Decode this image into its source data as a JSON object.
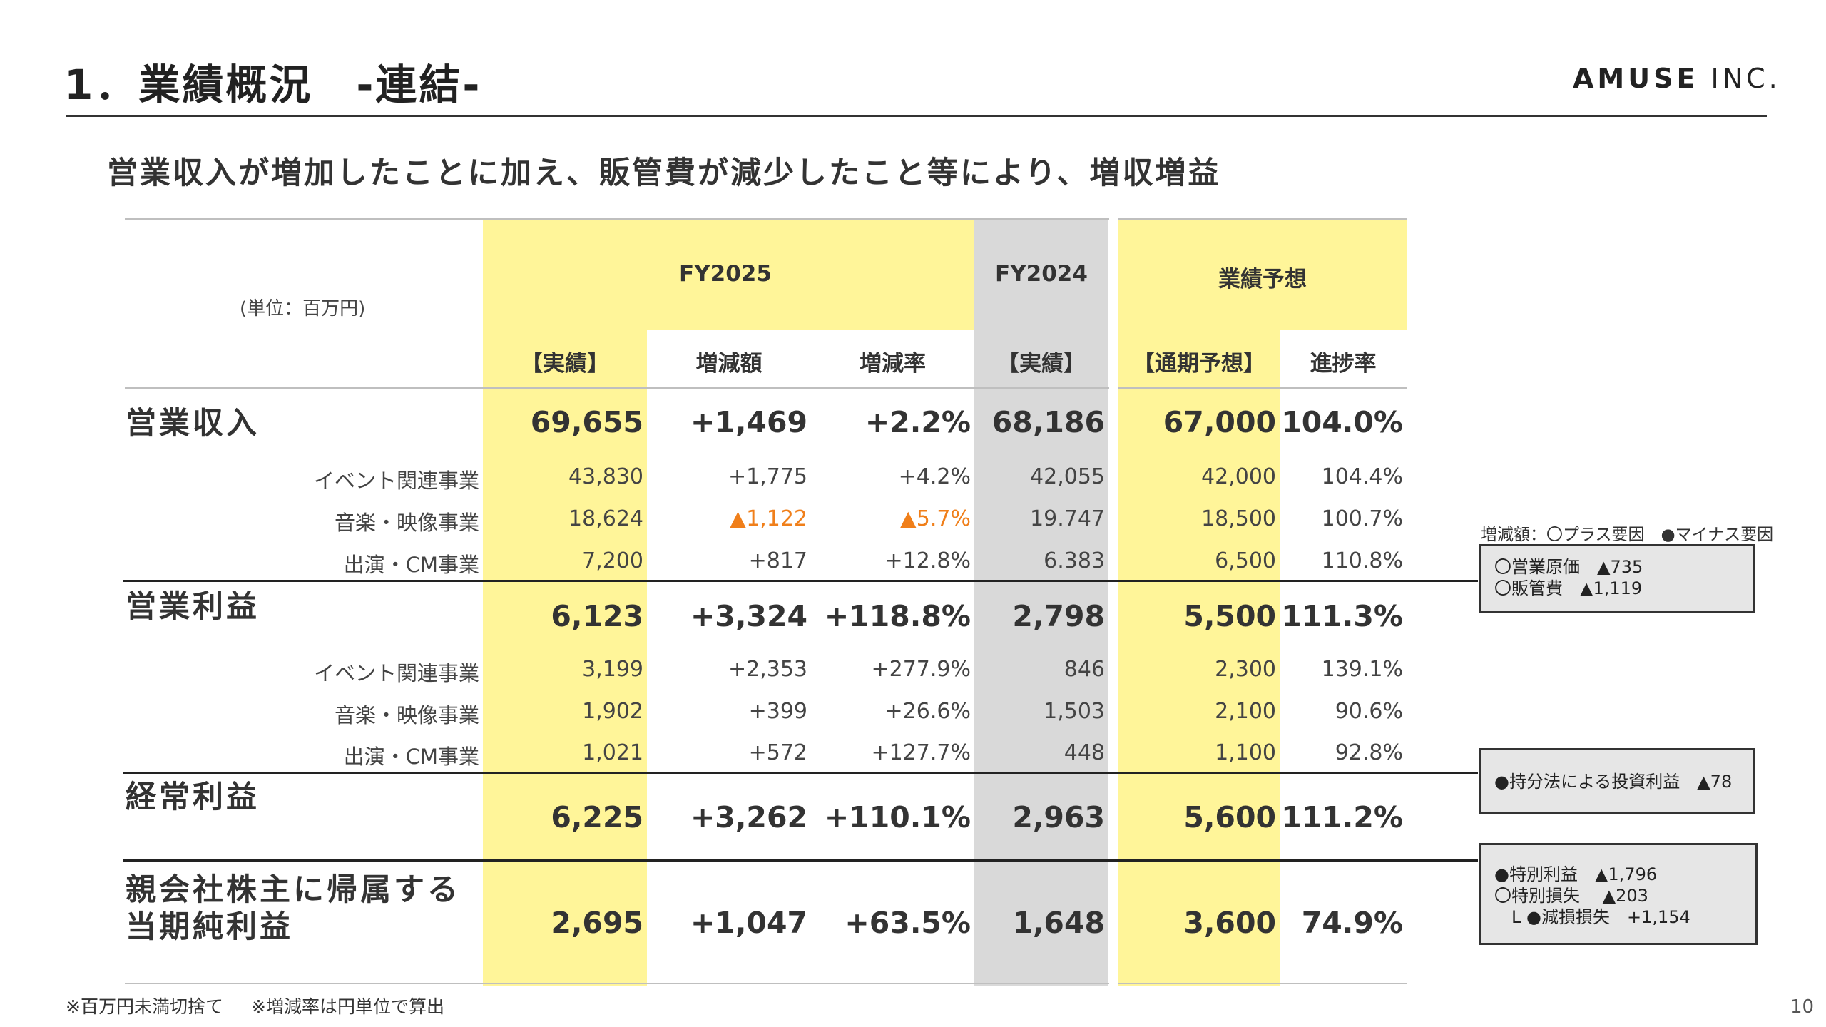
{
  "header": {
    "title": "1．業績概況　-連結-",
    "logo_main": "AMUSE",
    "logo_sub": "INC.",
    "subtitle": "営業収入が増加したことに加え、販管費が減少したこと等により、増収増益"
  },
  "table": {
    "unit": "(単位：百万円)",
    "group_headers": {
      "fy2025": "FY2025",
      "fy2024": "FY2024",
      "forecast": "業績予想"
    },
    "col_headers": [
      "【実績】",
      "増減額",
      "増減率",
      "【実績】",
      "【通期予想】",
      "進捗率"
    ],
    "rows": [
      {
        "label": "営業収入",
        "type": "main",
        "values": [
          "69,655",
          "+1,469",
          "+2.2%",
          "68,186",
          "67,000",
          "104.0%"
        ]
      },
      {
        "label": "イベント関連事業",
        "type": "sub",
        "values": [
          "43,830",
          "+1,775",
          "+4.2%",
          "42,055",
          "42,000",
          "104.4%"
        ]
      },
      {
        "label": "音楽・映像事業",
        "type": "sub",
        "values": [
          "18,624",
          "▲1,122",
          "▲5.7%",
          "19.747",
          "18,500",
          "100.7%"
        ]
      },
      {
        "label": "出演・CM事業",
        "type": "sub",
        "values": [
          "7,200",
          "+817",
          "+12.8%",
          "6.383",
          "6,500",
          "110.8%"
        ]
      },
      {
        "label": "営業利益",
        "type": "main",
        "values": [
          "6,123",
          "+3,324",
          "+118.8%",
          "2,798",
          "5,500",
          "111.3%"
        ]
      },
      {
        "label": "イベント関連事業",
        "type": "sub",
        "values": [
          "3,199",
          "+2,353",
          "+277.9%",
          "846",
          "2,300",
          "139.1%"
        ]
      },
      {
        "label": "音楽・映像事業",
        "type": "sub",
        "values": [
          "1,902",
          "+399",
          "+26.6%",
          "1,503",
          "2,100",
          "90.6%"
        ]
      },
      {
        "label": "出演・CM事業",
        "type": "sub",
        "values": [
          "1,021",
          "+572",
          "+127.7%",
          "448",
          "1,100",
          "92.8%"
        ]
      },
      {
        "label": "経常利益",
        "type": "main",
        "values": [
          "6,225",
          "+3,262",
          "+110.1%",
          "2,963",
          "5,600",
          "111.2%"
        ]
      },
      {
        "label_line1": "親会社株主に帰属する",
        "label_line2": "当期純利益",
        "type": "main",
        "values": [
          "2,695",
          "+1,047",
          "+63.5%",
          "1,648",
          "3,600",
          "74.9%"
        ]
      }
    ]
  },
  "notes": {
    "legend": "増減額：〇プラス要因　●マイナス要因",
    "box1": [
      "〇営業原価　▲735",
      "〇販管費　▲1,119"
    ],
    "box2": [
      "●持分法による投資利益　▲78"
    ],
    "box3": [
      "●特別利益　▲1,796",
      "〇特別損失　 ▲203",
      "　L ●減損損失　+1,154"
    ]
  },
  "footer": {
    "note1": "※百万円未満切捨て",
    "note2": "※増減率は円単位で算出",
    "page_number": "10"
  },
  "colors": {
    "highlight_yellow": "#FFF599",
    "fy2024_gray": "#D9D9D9",
    "negative_orange": "#F07F1A"
  }
}
